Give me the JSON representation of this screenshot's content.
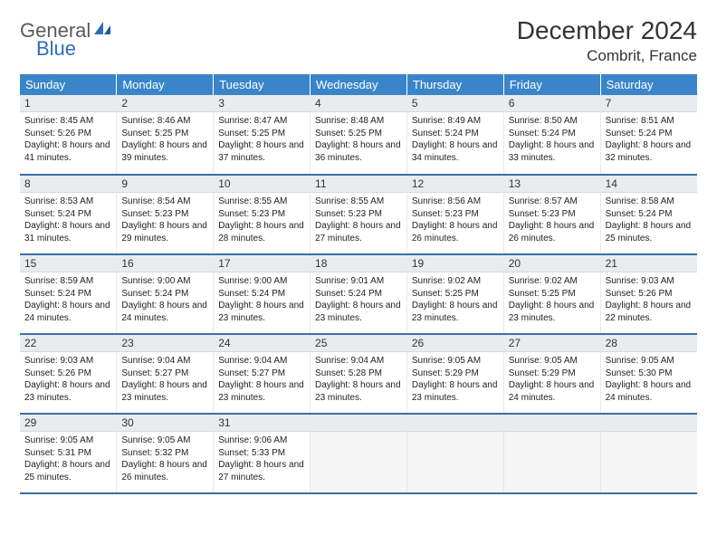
{
  "logo": {
    "part1": "General",
    "part2": "Blue"
  },
  "title": "December 2024",
  "location": "Combrit, France",
  "colors": {
    "header_bg": "#3a85c9",
    "header_text": "#ffffff",
    "row_border": "#3a6ea5",
    "daynum_bg": "#e9ecef",
    "logo_gray": "#5a5a5a",
    "logo_blue": "#2d6fb5"
  },
  "weekdays": [
    "Sunday",
    "Monday",
    "Tuesday",
    "Wednesday",
    "Thursday",
    "Friday",
    "Saturday"
  ],
  "days": [
    {
      "n": 1,
      "sr": "8:45 AM",
      "ss": "5:26 PM",
      "dl": "8 hours and 41 minutes."
    },
    {
      "n": 2,
      "sr": "8:46 AM",
      "ss": "5:25 PM",
      "dl": "8 hours and 39 minutes."
    },
    {
      "n": 3,
      "sr": "8:47 AM",
      "ss": "5:25 PM",
      "dl": "8 hours and 37 minutes."
    },
    {
      "n": 4,
      "sr": "8:48 AM",
      "ss": "5:25 PM",
      "dl": "8 hours and 36 minutes."
    },
    {
      "n": 5,
      "sr": "8:49 AM",
      "ss": "5:24 PM",
      "dl": "8 hours and 34 minutes."
    },
    {
      "n": 6,
      "sr": "8:50 AM",
      "ss": "5:24 PM",
      "dl": "8 hours and 33 minutes."
    },
    {
      "n": 7,
      "sr": "8:51 AM",
      "ss": "5:24 PM",
      "dl": "8 hours and 32 minutes."
    },
    {
      "n": 8,
      "sr": "8:53 AM",
      "ss": "5:24 PM",
      "dl": "8 hours and 31 minutes."
    },
    {
      "n": 9,
      "sr": "8:54 AM",
      "ss": "5:23 PM",
      "dl": "8 hours and 29 minutes."
    },
    {
      "n": 10,
      "sr": "8:55 AM",
      "ss": "5:23 PM",
      "dl": "8 hours and 28 minutes."
    },
    {
      "n": 11,
      "sr": "8:55 AM",
      "ss": "5:23 PM",
      "dl": "8 hours and 27 minutes."
    },
    {
      "n": 12,
      "sr": "8:56 AM",
      "ss": "5:23 PM",
      "dl": "8 hours and 26 minutes."
    },
    {
      "n": 13,
      "sr": "8:57 AM",
      "ss": "5:23 PM",
      "dl": "8 hours and 26 minutes."
    },
    {
      "n": 14,
      "sr": "8:58 AM",
      "ss": "5:24 PM",
      "dl": "8 hours and 25 minutes."
    },
    {
      "n": 15,
      "sr": "8:59 AM",
      "ss": "5:24 PM",
      "dl": "8 hours and 24 minutes."
    },
    {
      "n": 16,
      "sr": "9:00 AM",
      "ss": "5:24 PM",
      "dl": "8 hours and 24 minutes."
    },
    {
      "n": 17,
      "sr": "9:00 AM",
      "ss": "5:24 PM",
      "dl": "8 hours and 23 minutes."
    },
    {
      "n": 18,
      "sr": "9:01 AM",
      "ss": "5:24 PM",
      "dl": "8 hours and 23 minutes."
    },
    {
      "n": 19,
      "sr": "9:02 AM",
      "ss": "5:25 PM",
      "dl": "8 hours and 23 minutes."
    },
    {
      "n": 20,
      "sr": "9:02 AM",
      "ss": "5:25 PM",
      "dl": "8 hours and 23 minutes."
    },
    {
      "n": 21,
      "sr": "9:03 AM",
      "ss": "5:26 PM",
      "dl": "8 hours and 22 minutes."
    },
    {
      "n": 22,
      "sr": "9:03 AM",
      "ss": "5:26 PM",
      "dl": "8 hours and 23 minutes."
    },
    {
      "n": 23,
      "sr": "9:04 AM",
      "ss": "5:27 PM",
      "dl": "8 hours and 23 minutes."
    },
    {
      "n": 24,
      "sr": "9:04 AM",
      "ss": "5:27 PM",
      "dl": "8 hours and 23 minutes."
    },
    {
      "n": 25,
      "sr": "9:04 AM",
      "ss": "5:28 PM",
      "dl": "8 hours and 23 minutes."
    },
    {
      "n": 26,
      "sr": "9:05 AM",
      "ss": "5:29 PM",
      "dl": "8 hours and 23 minutes."
    },
    {
      "n": 27,
      "sr": "9:05 AM",
      "ss": "5:29 PM",
      "dl": "8 hours and 24 minutes."
    },
    {
      "n": 28,
      "sr": "9:05 AM",
      "ss": "5:30 PM",
      "dl": "8 hours and 24 minutes."
    },
    {
      "n": 29,
      "sr": "9:05 AM",
      "ss": "5:31 PM",
      "dl": "8 hours and 25 minutes."
    },
    {
      "n": 30,
      "sr": "9:05 AM",
      "ss": "5:32 PM",
      "dl": "8 hours and 26 minutes."
    },
    {
      "n": 31,
      "sr": "9:06 AM",
      "ss": "5:33 PM",
      "dl": "8 hours and 27 minutes."
    }
  ],
  "labels": {
    "sunrise": "Sunrise:",
    "sunset": "Sunset:",
    "daylight": "Daylight:"
  },
  "layout": {
    "first_weekday_index": 0,
    "total_cells": 35
  }
}
